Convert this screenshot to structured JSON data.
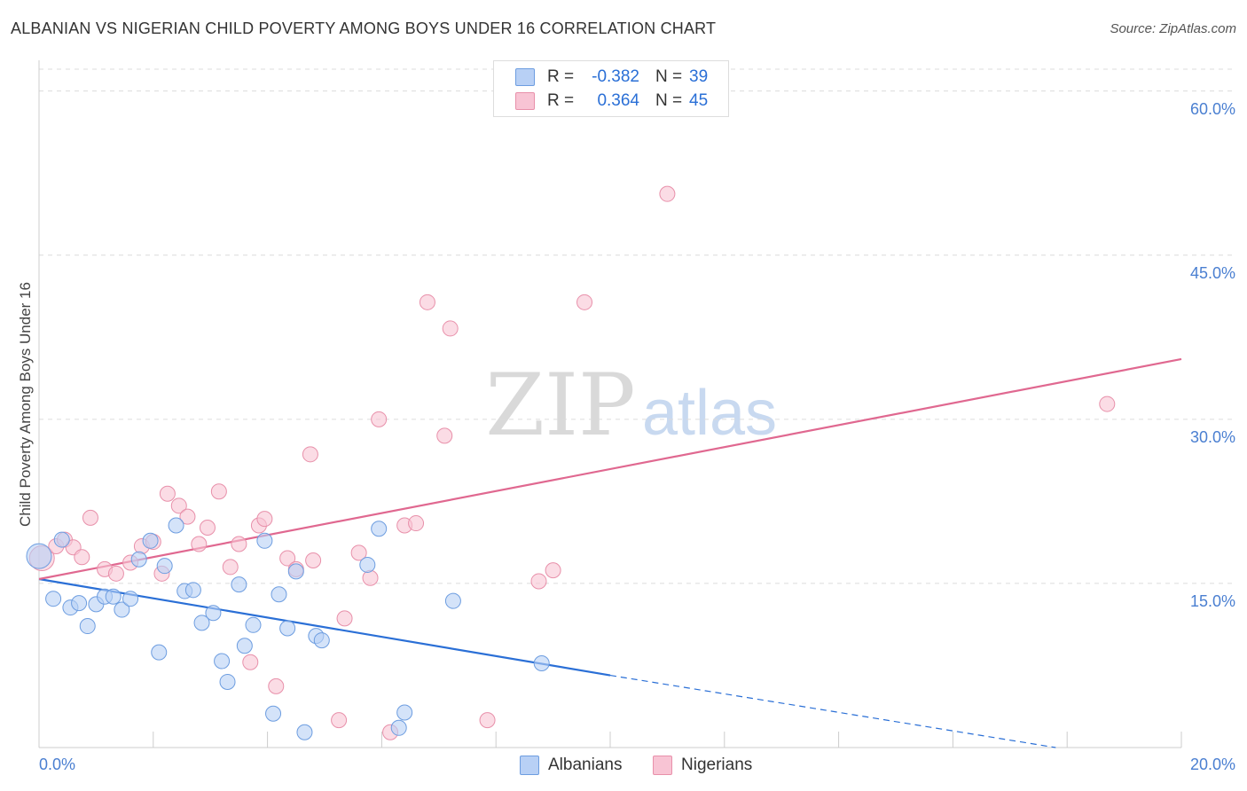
{
  "title": "ALBANIAN VS NIGERIAN CHILD POVERTY AMONG BOYS UNDER 16 CORRELATION CHART",
  "source": "Source: ZipAtlas.com",
  "watermark": {
    "zip": "ZIP",
    "atlas": "atlas"
  },
  "legend": {
    "albanians": {
      "r_label": "R =",
      "r_value": "-0.382",
      "n_label": "N =",
      "n_value": "39"
    },
    "nigerians": {
      "r_label": "R =",
      "r_value": "0.364",
      "n_label": "N =",
      "n_value": "45"
    }
  },
  "bottom_legend": {
    "albanians": "Albanians",
    "nigerians": "Nigerians"
  },
  "colors": {
    "albanian_fill": "#b8d0f5",
    "albanian_stroke": "#6d9de0",
    "albanian_line": "#2a6fd6",
    "nigerian_fill": "#f8c4d4",
    "nigerian_stroke": "#e890aa",
    "nigerian_line": "#e06890",
    "tick_text": "#4a7fd1"
  },
  "chart_data": {
    "type": "scatter",
    "title": "ALBANIAN VS NIGERIAN CHILD POVERTY AMONG BOYS UNDER 16 CORRELATION CHART",
    "xlabel": "",
    "ylabel": "Child Poverty Among Boys Under 16",
    "xlim": [
      0,
      20
    ],
    "ylim": [
      0,
      62
    ],
    "x_tick_labels": {
      "min": "0.0%",
      "max": "20.0%"
    },
    "y_ticks": [
      {
        "value": 15,
        "label": "15.0%"
      },
      {
        "value": 30,
        "label": "30.0%"
      },
      {
        "value": 45,
        "label": "45.0%"
      },
      {
        "value": 60,
        "label": "60.0%"
      }
    ],
    "series": [
      {
        "name": "Albanians",
        "r": -0.382,
        "n": 39,
        "trend": {
          "x0": 0.0,
          "y0": 15.4,
          "x1": 10.0,
          "y1": 6.6,
          "dash_to_x": 17.8,
          "dash_to_y": 0.0
        },
        "points": [
          [
            0.0,
            17.5
          ],
          [
            0.25,
            13.6
          ],
          [
            0.4,
            19.0
          ],
          [
            0.55,
            12.8
          ],
          [
            0.7,
            13.2
          ],
          [
            0.85,
            11.1
          ],
          [
            1.0,
            13.1
          ],
          [
            1.15,
            13.8
          ],
          [
            1.3,
            13.8
          ],
          [
            1.45,
            12.6
          ],
          [
            1.6,
            13.6
          ],
          [
            1.75,
            17.2
          ],
          [
            1.95,
            18.9
          ],
          [
            2.1,
            8.7
          ],
          [
            2.2,
            16.6
          ],
          [
            2.4,
            20.3
          ],
          [
            2.55,
            14.3
          ],
          [
            2.7,
            14.4
          ],
          [
            2.85,
            11.4
          ],
          [
            3.05,
            12.3
          ],
          [
            3.2,
            7.9
          ],
          [
            3.3,
            6.0
          ],
          [
            3.5,
            14.9
          ],
          [
            3.6,
            9.3
          ],
          [
            3.75,
            11.2
          ],
          [
            3.95,
            18.9
          ],
          [
            4.1,
            3.1
          ],
          [
            4.2,
            14.0
          ],
          [
            4.35,
            10.9
          ],
          [
            4.5,
            16.1
          ],
          [
            4.65,
            1.4
          ],
          [
            4.85,
            10.2
          ],
          [
            4.95,
            9.8
          ],
          [
            5.75,
            16.7
          ],
          [
            5.95,
            20.0
          ],
          [
            6.3,
            1.8
          ],
          [
            6.4,
            3.2
          ],
          [
            7.25,
            13.4
          ],
          [
            8.8,
            7.7
          ]
        ]
      },
      {
        "name": "Nigerians",
        "r": 0.364,
        "n": 45,
        "trend": {
          "x0": 0.0,
          "y0": 15.4,
          "x1": 20.0,
          "y1": 35.5
        },
        "points": [
          [
            0.05,
            17.3
          ],
          [
            0.3,
            18.4
          ],
          [
            0.45,
            19.0
          ],
          [
            0.6,
            18.3
          ],
          [
            0.75,
            17.4
          ],
          [
            0.9,
            21.0
          ],
          [
            1.15,
            16.3
          ],
          [
            1.35,
            15.9
          ],
          [
            1.6,
            16.9
          ],
          [
            1.8,
            18.4
          ],
          [
            2.0,
            18.8
          ],
          [
            2.15,
            15.9
          ],
          [
            2.25,
            23.2
          ],
          [
            2.45,
            22.1
          ],
          [
            2.6,
            21.1
          ],
          [
            2.8,
            18.6
          ],
          [
            2.95,
            20.1
          ],
          [
            3.15,
            23.4
          ],
          [
            3.35,
            16.5
          ],
          [
            3.5,
            18.6
          ],
          [
            3.7,
            7.8
          ],
          [
            3.85,
            20.3
          ],
          [
            3.95,
            20.9
          ],
          [
            4.15,
            5.6
          ],
          [
            4.35,
            17.3
          ],
          [
            4.5,
            16.3
          ],
          [
            4.75,
            26.8
          ],
          [
            4.8,
            17.1
          ],
          [
            5.25,
            2.5
          ],
          [
            5.35,
            11.8
          ],
          [
            5.6,
            17.8
          ],
          [
            5.8,
            15.5
          ],
          [
            5.95,
            30.0
          ],
          [
            6.15,
            1.4
          ],
          [
            6.4,
            20.3
          ],
          [
            6.6,
            20.5
          ],
          [
            6.8,
            40.7
          ],
          [
            7.1,
            28.5
          ],
          [
            7.2,
            38.3
          ],
          [
            7.85,
            2.5
          ],
          [
            8.75,
            15.2
          ],
          [
            9.0,
            16.2
          ],
          [
            9.55,
            40.7
          ],
          [
            11.0,
            50.6
          ],
          [
            18.7,
            31.4
          ]
        ]
      }
    ]
  }
}
